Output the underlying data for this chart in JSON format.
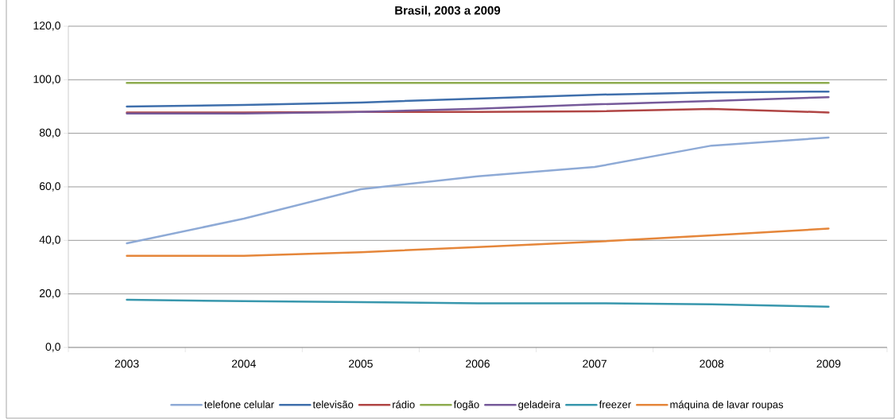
{
  "chart_data": {
    "type": "line",
    "title": "Brasil, 2003 a 2009",
    "categories": [
      "2003",
      "2004",
      "2005",
      "2006",
      "2007",
      "2008",
      "2009"
    ],
    "series": [
      {
        "name": "telefone celular",
        "color": "#8eaad6",
        "values": [
          38.9,
          48.1,
          59.1,
          63.9,
          67.4,
          75.4,
          78.4
        ]
      },
      {
        "name": "televisão",
        "color": "#3f6fac",
        "values": [
          90.0,
          90.6,
          91.5,
          93.0,
          94.4,
          95.3,
          95.6
        ]
      },
      {
        "name": "rádio",
        "color": "#b04544",
        "values": [
          87.8,
          87.8,
          88.0,
          88.0,
          88.2,
          89.1,
          87.8
        ]
      },
      {
        "name": "fogão",
        "color": "#8eac4f",
        "values": [
          98.8,
          98.8,
          98.8,
          98.8,
          98.8,
          98.8,
          98.8
        ]
      },
      {
        "name": "geladeira",
        "color": "#765a9a",
        "values": [
          87.4,
          87.4,
          88.0,
          89.2,
          90.8,
          92.1,
          93.5
        ]
      },
      {
        "name": "freezer",
        "color": "#3897ad",
        "values": [
          17.8,
          17.3,
          16.9,
          16.5,
          16.5,
          16.1,
          15.2
        ]
      },
      {
        "name": "máquina de lavar roupas",
        "color": "#e5863a",
        "values": [
          34.2,
          34.2,
          35.6,
          37.5,
          39.5,
          41.9,
          44.4
        ]
      }
    ],
    "ylim": [
      0,
      120
    ],
    "yticks": [
      {
        "value": 0,
        "label": "0,0"
      },
      {
        "value": 20,
        "label": "20,0"
      },
      {
        "value": 40,
        "label": "40,0"
      },
      {
        "value": 60,
        "label": "60,0"
      },
      {
        "value": 80,
        "label": "80,0"
      },
      {
        "value": 100,
        "label": "100,0"
      },
      {
        "value": 120,
        "label": "120,0"
      }
    ],
    "grid": "y",
    "legend": "bottom",
    "line_style": "solid"
  }
}
